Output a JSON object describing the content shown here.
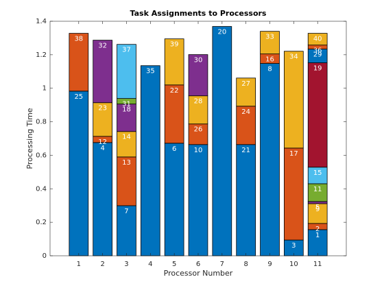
{
  "chart_data": {
    "type": "stacked-bar",
    "title": "Task Assignments to Processors",
    "xlabel": "Processor Number",
    "ylabel": "Processing Time",
    "x": [
      1,
      2,
      3,
      4,
      5,
      6,
      7,
      8,
      9,
      10,
      11
    ],
    "xlim": [
      -0.2,
      12.2
    ],
    "xticks": [
      1,
      2,
      3,
      4,
      5,
      6,
      7,
      8,
      9,
      10,
      11
    ],
    "ylim": [
      0,
      1.4
    ],
    "yticks": [
      0,
      0.2,
      0.4,
      0.6,
      0.8,
      1,
      1.2,
      1.4
    ],
    "stacks": [
      {
        "segments": [
          {
            "label": "25",
            "value": 0.983,
            "color": "#0072bd"
          },
          {
            "label": "38",
            "value": 0.345,
            "color": "#d95319"
          }
        ]
      },
      {
        "segments": [
          {
            "label": "4",
            "value": 0.676,
            "color": "#0072bd"
          },
          {
            "label": "12",
            "value": 0.037,
            "color": "#d95319"
          },
          {
            "label": "23",
            "value": 0.201,
            "color": "#edb120"
          },
          {
            "label": "32",
            "value": 0.373,
            "color": "#7e2f8e"
          }
        ]
      },
      {
        "segments": [
          {
            "label": "7",
            "value": 0.299,
            "color": "#0072bd"
          },
          {
            "label": "13",
            "value": 0.291,
            "color": "#d95319"
          },
          {
            "label": "14",
            "value": 0.152,
            "color": "#edb120"
          },
          {
            "label": "18",
            "value": 0.164,
            "color": "#7e2f8e"
          },
          {
            "label": "31",
            "value": 0.033,
            "color": "#77ac30"
          },
          {
            "label": "37",
            "value": 0.323,
            "color": "#4dbeee"
          }
        ]
      },
      {
        "segments": [
          {
            "label": "35",
            "value": 1.135,
            "color": "#0072bd"
          }
        ]
      },
      {
        "segments": [
          {
            "label": "6",
            "value": 0.672,
            "color": "#0072bd"
          },
          {
            "label": "22",
            "value": 0.348,
            "color": "#d95319"
          },
          {
            "label": "39",
            "value": 0.275,
            "color": "#edb120"
          }
        ]
      },
      {
        "segments": [
          {
            "label": "10",
            "value": 0.664,
            "color": "#0072bd"
          },
          {
            "label": "26",
            "value": 0.123,
            "color": "#d95319"
          },
          {
            "label": "28",
            "value": 0.168,
            "color": "#edb120"
          },
          {
            "label": "30",
            "value": 0.246,
            "color": "#7e2f8e"
          }
        ]
      },
      {
        "segments": [
          {
            "label": "20",
            "value": 1.369,
            "color": "#0072bd"
          }
        ]
      },
      {
        "segments": [
          {
            "label": "21",
            "value": 0.664,
            "color": "#0072bd"
          },
          {
            "label": "24",
            "value": 0.229,
            "color": "#d95319"
          },
          {
            "label": "27",
            "value": 0.168,
            "color": "#edb120"
          }
        ]
      },
      {
        "segments": [
          {
            "label": "8",
            "value": 1.148,
            "color": "#0072bd"
          },
          {
            "label": "16",
            "value": 0.057,
            "color": "#d95319"
          },
          {
            "label": "33",
            "value": 0.135,
            "color": "#edb120"
          }
        ]
      },
      {
        "segments": [
          {
            "label": "3",
            "value": 0.094,
            "color": "#0072bd"
          },
          {
            "label": "17",
            "value": 0.549,
            "color": "#d95319"
          },
          {
            "label": "34",
            "value": 0.578,
            "color": "#edb120"
          }
        ]
      },
      {
        "segments": [
          {
            "label": "1",
            "value": 0.156,
            "color": "#0072bd"
          },
          {
            "label": "2",
            "value": 0.037,
            "color": "#d95319"
          },
          {
            "label": "9",
            "value": 0.118,
            "color": "#edb120"
          },
          {
            "label": "5",
            "value": 0.013,
            "color": "#7e2f8e"
          },
          {
            "label": "11",
            "value": 0.106,
            "color": "#77ac30"
          },
          {
            "label": "15",
            "value": 0.099,
            "color": "#4dbeee"
          },
          {
            "label": "19",
            "value": 0.623,
            "color": "#a2142f"
          },
          {
            "label": "29",
            "value": 0.082,
            "color": "#0072bd"
          },
          {
            "label": "36",
            "value": 0.024,
            "color": "#d95319"
          },
          {
            "label": "40",
            "value": 0.07,
            "color": "#edb120"
          }
        ]
      }
    ]
  }
}
